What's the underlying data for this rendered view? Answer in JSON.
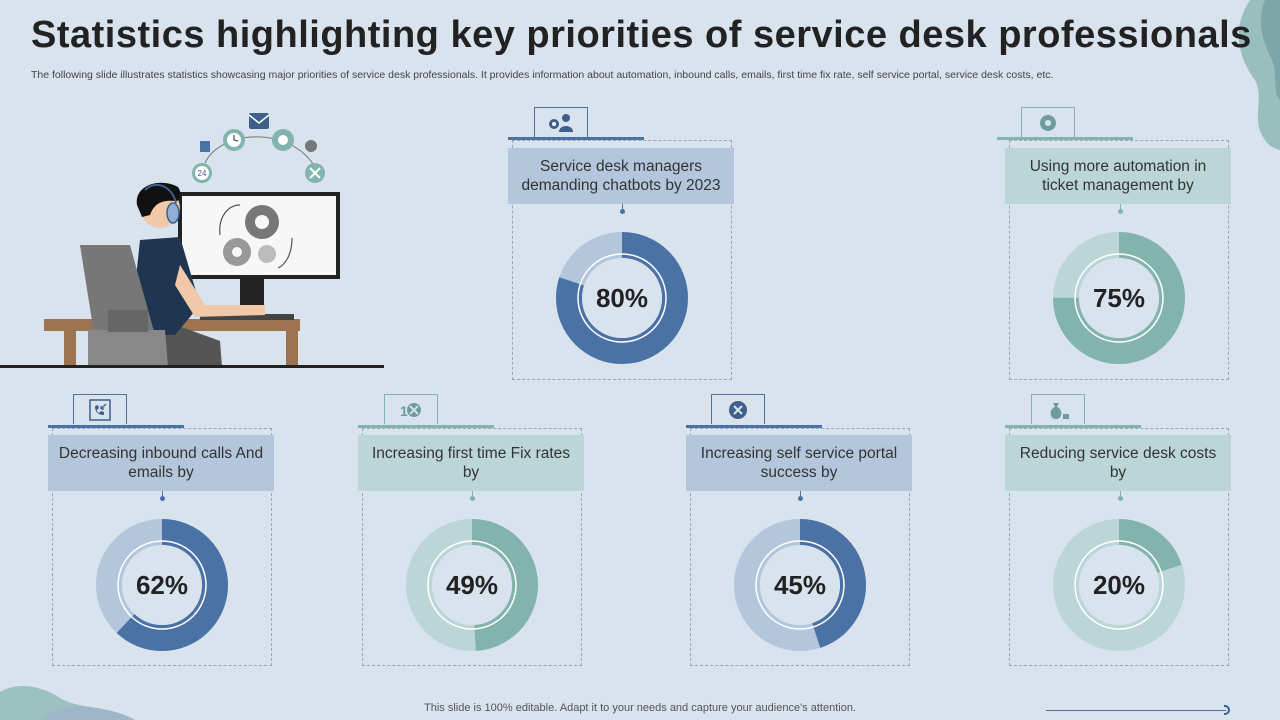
{
  "title": "Statistics highlighting key priorities of service desk professionals",
  "subtitle": "The following slide illustrates statistics showcasing major priorities of service desk professionals. It provides information about automation, inbound calls, emails, first time fix rate, self service portal, service desk costs, etc.",
  "footer": "This slide is 100% editable. Adapt it to your needs and capture your audience's attention.",
  "colors": {
    "blue": "#4a72a4",
    "blue_light": "#b3c6db",
    "teal": "#82b4ad",
    "teal_light": "#bcd6d8"
  },
  "illustration": {
    "badge_24": "24"
  },
  "stats": [
    {
      "label": "Service desk managers demanding chatbots by 2023",
      "value": 80,
      "display": "80%",
      "theme": "blue",
      "icon": "manager-gear-icon"
    },
    {
      "label": "Using more automation in ticket management by",
      "value": 75,
      "display": "75%",
      "theme": "teal",
      "icon": "automation-gear-icon"
    },
    {
      "label": "Decreasing inbound calls And emails by",
      "value": 62,
      "display": "62%",
      "theme": "blue",
      "icon": "incoming-call-icon"
    },
    {
      "label": "Increasing first time Fix rates by",
      "value": 49,
      "display": "49%",
      "theme": "teal",
      "icon": "fix-tools-icon"
    },
    {
      "label": "Increasing self service portal success by",
      "value": 45,
      "display": "45%",
      "theme": "blue",
      "icon": "self-service-icon"
    },
    {
      "label": "Reducing service desk costs by",
      "value": 20,
      "display": "20%",
      "theme": "teal",
      "icon": "money-bag-icon"
    }
  ]
}
